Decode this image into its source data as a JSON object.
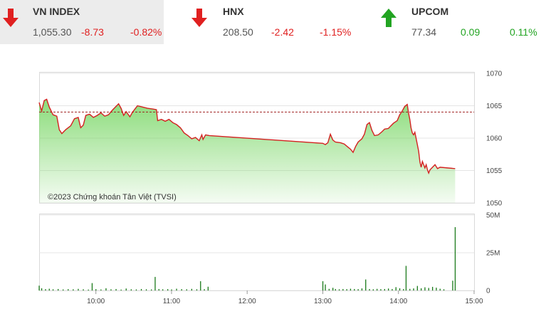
{
  "indices": [
    {
      "name": "VN INDEX",
      "value": "1,055.30",
      "change": "-8.73",
      "pct": "-0.82%",
      "direction": "down",
      "active": true
    },
    {
      "name": "HNX",
      "value": "208.50",
      "change": "-2.42",
      "pct": "-1.15%",
      "direction": "down",
      "active": false
    },
    {
      "name": "UPCOM",
      "value": "77.34",
      "change": "0.09",
      "pct": "0.11%",
      "direction": "up",
      "active": false
    }
  ],
  "colors": {
    "down": "#e02020",
    "up": "#22a422",
    "line": "#d42020",
    "fill": "#7ed86b",
    "reference": "#a02020",
    "volume": "#1a7a1a"
  },
  "chart_data": {
    "type": "area",
    "copyright": "©2023 Chứng khoán Tân Việt (TVSI)",
    "x_ticks": [
      "10:00",
      "11:00",
      "12:00",
      "13:00",
      "14:00",
      "15:00"
    ],
    "y_ticks": [
      "1050",
      "1055",
      "1060",
      "1065",
      "1070"
    ],
    "ylim": [
      1050,
      1070
    ],
    "reference_level": 1064.03,
    "xlim": [
      "09:15",
      "15:00"
    ],
    "price_series": [
      [
        "09:15",
        1065.5
      ],
      [
        "09:17",
        1064.2
      ],
      [
        "09:19",
        1065.8
      ],
      [
        "09:21",
        1066
      ],
      [
        "09:23",
        1064.8
      ],
      [
        "09:26",
        1063.6
      ],
      [
        "09:29",
        1063.4
      ],
      [
        "09:31",
        1061.3
      ],
      [
        "09:33",
        1060.7
      ],
      [
        "09:36",
        1061.3
      ],
      [
        "09:40",
        1061.9
      ],
      [
        "09:43",
        1063.0
      ],
      [
        "09:46",
        1063.2
      ],
      [
        "09:48",
        1061.6
      ],
      [
        "09:50",
        1062.0
      ],
      [
        "09:52",
        1063.5
      ],
      [
        "09:55",
        1063.7
      ],
      [
        "09:58",
        1063.2
      ],
      [
        "10:01",
        1063.5
      ],
      [
        "10:04",
        1063.9
      ],
      [
        "10:07",
        1063.4
      ],
      [
        "10:10",
        1063.6
      ],
      [
        "10:13",
        1064.3
      ],
      [
        "10:16",
        1064.9
      ],
      [
        "10:18",
        1065.3
      ],
      [
        "10:20",
        1064.6
      ],
      [
        "10:22",
        1063.5
      ],
      [
        "10:24",
        1064.1
      ],
      [
        "10:27",
        1063.3
      ],
      [
        "10:29",
        1064.0
      ],
      [
        "10:31",
        1064.5
      ],
      [
        "10:33",
        1065.0
      ],
      [
        "10:37",
        1064.8
      ],
      [
        "10:41",
        1064.6
      ],
      [
        "10:45",
        1064.5
      ],
      [
        "10:48",
        1064.4
      ],
      [
        "10:49",
        1062.7
      ],
      [
        "10:52",
        1062.9
      ],
      [
        "10:55",
        1062.6
      ],
      [
        "10:58",
        1062.9
      ],
      [
        "11:01",
        1062.4
      ],
      [
        "11:04",
        1062.1
      ],
      [
        "11:07",
        1061.6
      ],
      [
        "11:10",
        1060.8
      ],
      [
        "11:13",
        1060.4
      ],
      [
        "11:16",
        1059.9
      ],
      [
        "11:19",
        1060.1
      ],
      [
        "11:22",
        1059.6
      ],
      [
        "11:24",
        1060.5
      ],
      [
        "11:25",
        1059.8
      ],
      [
        "11:27",
        1060.5
      ],
      [
        "11:30",
        1060.4
      ],
      [
        "13:00",
        1059.2
      ],
      [
        "13:02",
        1059.0
      ],
      [
        "13:04",
        1059.3
      ],
      [
        "13:06",
        1060.6
      ],
      [
        "13:08",
        1059.7
      ],
      [
        "13:10",
        1059.4
      ],
      [
        "13:14",
        1059.3
      ],
      [
        "13:17",
        1059.1
      ],
      [
        "13:20",
        1058.6
      ],
      [
        "13:22",
        1058.3
      ],
      [
        "13:24",
        1057.8
      ],
      [
        "13:26",
        1058.7
      ],
      [
        "13:28",
        1059.4
      ],
      [
        "13:31",
        1059.9
      ],
      [
        "13:33",
        1060.6
      ],
      [
        "13:35",
        1062.1
      ],
      [
        "13:37",
        1062.4
      ],
      [
        "13:39",
        1061.2
      ],
      [
        "13:41",
        1060.4
      ],
      [
        "13:44",
        1060.5
      ],
      [
        "13:47",
        1061.0
      ],
      [
        "13:49",
        1061.4
      ],
      [
        "13:52",
        1061.5
      ],
      [
        "13:54",
        1061.9
      ],
      [
        "13:56",
        1062.3
      ],
      [
        "13:59",
        1062.7
      ],
      [
        "14:01",
        1063.6
      ],
      [
        "14:03",
        1064.2
      ],
      [
        "14:05",
        1064.9
      ],
      [
        "14:07",
        1065.2
      ],
      [
        "14:08",
        1063.9
      ],
      [
        "14:09",
        1062.9
      ],
      [
        "14:10",
        1061.6
      ],
      [
        "14:11",
        1060.8
      ],
      [
        "14:12",
        1060.5
      ],
      [
        "14:13",
        1060.9
      ],
      [
        "14:14",
        1060.0
      ],
      [
        "14:16",
        1058.0
      ],
      [
        "14:17",
        1056.4
      ],
      [
        "14:18",
        1055.5
      ],
      [
        "14:19",
        1056.4
      ],
      [
        "14:21",
        1055.4
      ],
      [
        "14:22",
        1055.9
      ],
      [
        "14:23",
        1055.1
      ],
      [
        "14:24",
        1054.6
      ],
      [
        "14:25",
        1055.1
      ],
      [
        "14:27",
        1055.5
      ],
      [
        "14:29",
        1055.9
      ],
      [
        "14:31",
        1055.3
      ],
      [
        "14:33",
        1055.5
      ],
      [
        "14:45",
        1055.3
      ]
    ],
    "volume_y_ticks": [
      "0",
      "25M",
      "50M"
    ],
    "volume_ylim": [
      0,
      50
    ],
    "volume_unit": "M",
    "volume_series": [
      [
        "09:15",
        3.2
      ],
      [
        "09:17",
        1.5
      ],
      [
        "09:20",
        0.9
      ],
      [
        "09:23",
        1.2
      ],
      [
        "09:26",
        0.8
      ],
      [
        "09:30",
        1.0
      ],
      [
        "09:34",
        0.7
      ],
      [
        "09:38",
        0.9
      ],
      [
        "09:42",
        0.8
      ],
      [
        "09:46",
        1.1
      ],
      [
        "09:50",
        0.8
      ],
      [
        "09:54",
        0.6
      ],
      [
        "09:57",
        4.9
      ],
      [
        "10:00",
        0.9
      ],
      [
        "10:04",
        0.7
      ],
      [
        "10:08",
        1.5
      ],
      [
        "10:12",
        0.8
      ],
      [
        "10:16",
        1.0
      ],
      [
        "10:20",
        0.6
      ],
      [
        "10:24",
        1.3
      ],
      [
        "10:28",
        0.8
      ],
      [
        "10:32",
        0.7
      ],
      [
        "10:36",
        1.0
      ],
      [
        "10:40",
        0.8
      ],
      [
        "10:44",
        0.7
      ],
      [
        "10:47",
        9.0
      ],
      [
        "10:50",
        1.0
      ],
      [
        "10:53",
        0.8
      ],
      [
        "10:57",
        0.9
      ],
      [
        "11:00",
        0.7
      ],
      [
        "11:04",
        1.2
      ],
      [
        "11:08",
        0.9
      ],
      [
        "11:12",
        0.8
      ],
      [
        "11:16",
        1.1
      ],
      [
        "11:20",
        0.8
      ],
      [
        "11:23",
        6.2
      ],
      [
        "11:26",
        0.9
      ],
      [
        "11:29",
        2.5
      ],
      [
        "13:00",
        6.2
      ],
      [
        "13:02",
        4.0
      ],
      [
        "13:05",
        1.1
      ],
      [
        "13:08",
        1.8
      ],
      [
        "13:10",
        1.0
      ],
      [
        "13:13",
        0.8
      ],
      [
        "13:16",
        1.0
      ],
      [
        "13:19",
        0.9
      ],
      [
        "13:22",
        1.2
      ],
      [
        "13:25",
        1.0
      ],
      [
        "13:28",
        0.9
      ],
      [
        "13:31",
        1.4
      ],
      [
        "13:34",
        7.3
      ],
      [
        "13:37",
        1.0
      ],
      [
        "13:40",
        0.8
      ],
      [
        "13:43",
        1.1
      ],
      [
        "13:46",
        0.9
      ],
      [
        "13:49",
        1.0
      ],
      [
        "13:52",
        1.3
      ],
      [
        "13:55",
        1.0
      ],
      [
        "13:58",
        2.2
      ],
      [
        "14:01",
        1.5
      ],
      [
        "14:04",
        1.0
      ],
      [
        "14:06",
        16.3
      ],
      [
        "14:09",
        1.1
      ],
      [
        "14:12",
        1.4
      ],
      [
        "14:15",
        3.0
      ],
      [
        "14:18",
        1.5
      ],
      [
        "14:21",
        2.1
      ],
      [
        "14:24",
        1.7
      ],
      [
        "14:27",
        2.4
      ],
      [
        "14:30",
        1.9
      ],
      [
        "14:33",
        1.2
      ],
      [
        "14:36",
        0.8
      ],
      [
        "14:43",
        6.5
      ],
      [
        "14:45",
        42.0
      ]
    ]
  }
}
